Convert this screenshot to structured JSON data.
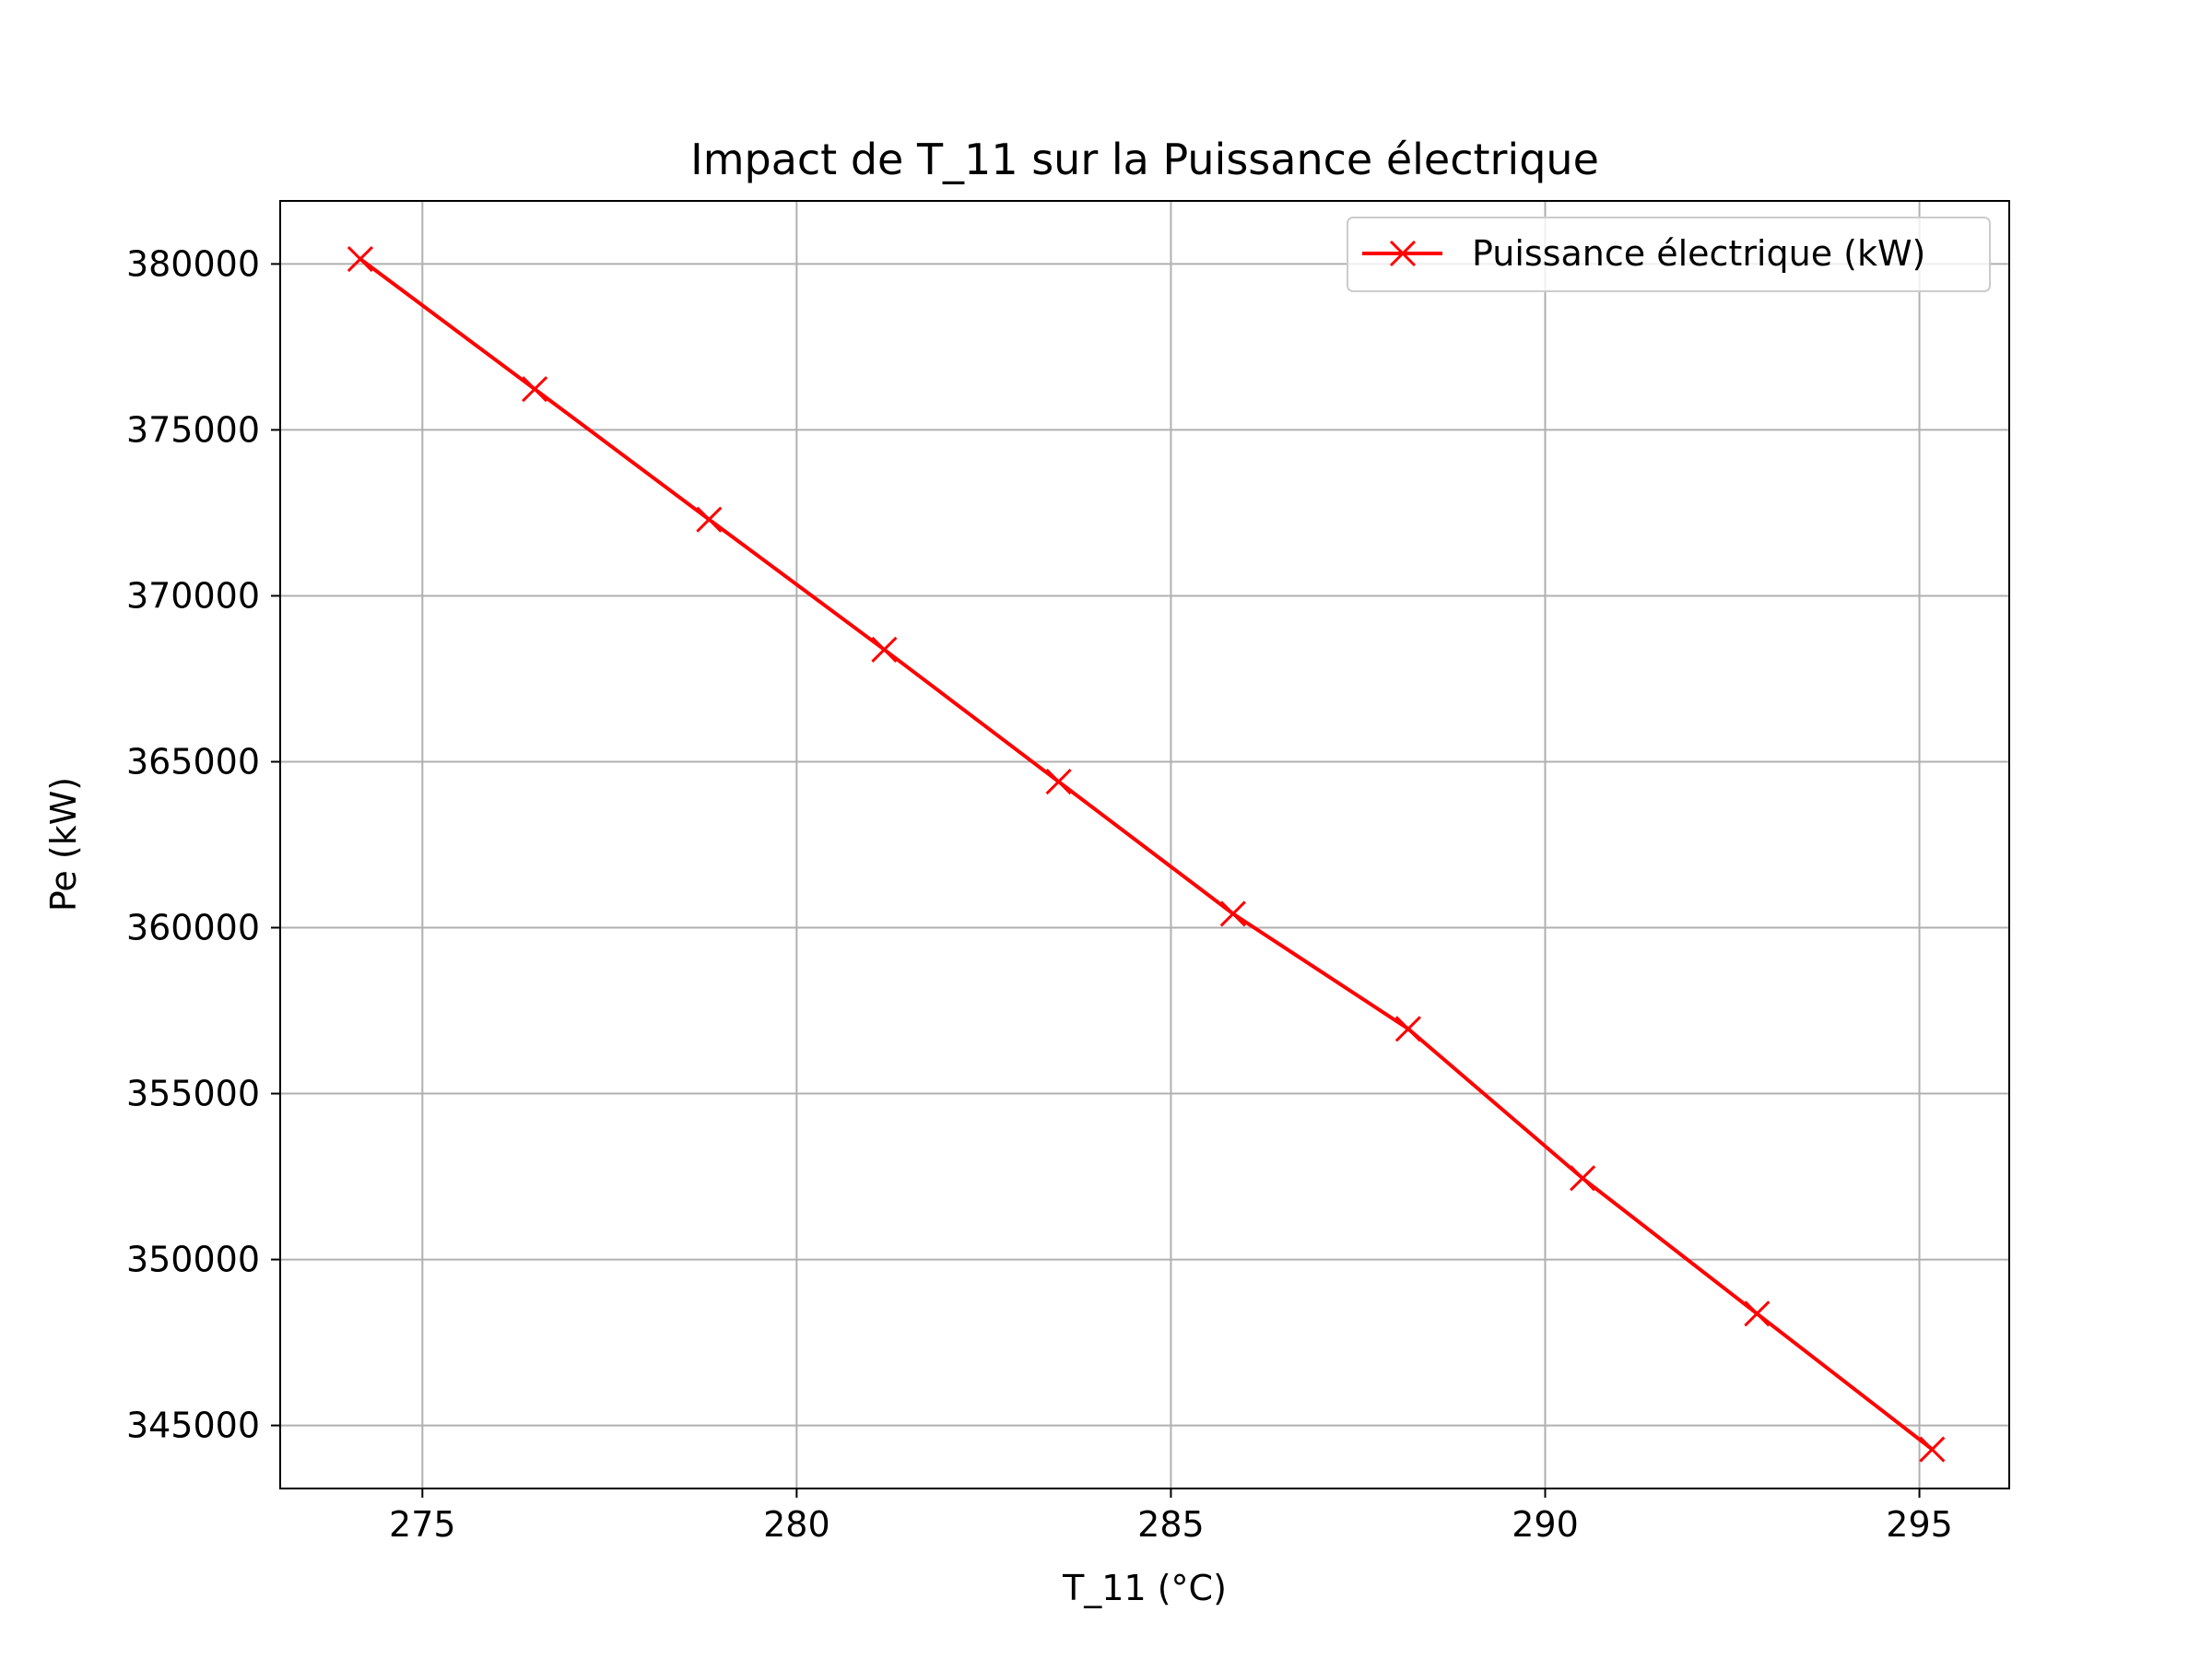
{
  "chart_data": {
    "type": "line",
    "title": "Impact de T_11 sur la Puissance électrique",
    "xlabel": "T_11 (°C)",
    "ylabel": "Pe (kW)",
    "xlim": [
      273.1,
      296.2
    ],
    "ylim": [
      343100,
      381900
    ],
    "xticks": [
      275,
      280,
      285,
      290,
      295
    ],
    "yticks": [
      345000,
      350000,
      355000,
      360000,
      365000,
      370000,
      375000,
      380000
    ],
    "grid": true,
    "legend_position": "top-right",
    "marker": "x",
    "series": [
      {
        "name": "Puissance électrique (kW)",
        "color": "#ff0000",
        "x": [
          274.17,
          276.5,
          278.83,
          281.17,
          283.5,
          285.83,
          288.17,
          290.5,
          292.83,
          295.17
        ],
        "y": [
          380150,
          376230,
          372300,
          368380,
          364400,
          360420,
          356950,
          352450,
          348370,
          344280
        ]
      }
    ]
  }
}
